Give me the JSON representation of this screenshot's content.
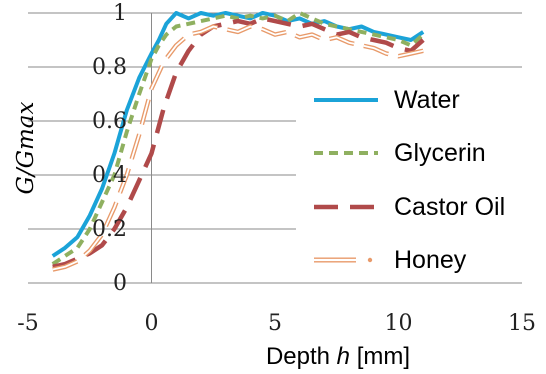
{
  "chart_data": {
    "type": "line",
    "title": "",
    "xlabel": {
      "text": "Depth ",
      "var": "h",
      "unit": " [mm]"
    },
    "ylabel": "G/Gmax",
    "xlim": [
      -5,
      15
    ],
    "ylim": [
      0,
      1
    ],
    "x_ticks": [
      -5,
      0,
      5,
      10,
      15
    ],
    "y_ticks": [
      0,
      0.2,
      0.4,
      0.6,
      0.8,
      1
    ],
    "x_tick_labels": [
      "-5",
      "0",
      "5",
      "10",
      "15"
    ],
    "y_tick_labels": [
      "0",
      "0.2",
      "0.4",
      "0.6",
      "0.8",
      "1"
    ],
    "grid": {
      "horizontal": true,
      "vertical": false
    },
    "legend_position": "right",
    "series": [
      {
        "name": "Water",
        "color": "#1ba3d8",
        "style": "solid",
        "points": [
          [
            -4,
            0.1
          ],
          [
            -3.5,
            0.13
          ],
          [
            -3,
            0.17
          ],
          [
            -2.5,
            0.25
          ],
          [
            -2,
            0.35
          ],
          [
            -1.5,
            0.48
          ],
          [
            -1,
            0.64
          ],
          [
            -0.5,
            0.76
          ],
          [
            0,
            0.85
          ],
          [
            0.3,
            0.9
          ],
          [
            0.6,
            0.96
          ],
          [
            1,
            1.0
          ],
          [
            1.5,
            0.98
          ],
          [
            2,
            1.0
          ],
          [
            2.5,
            0.99
          ],
          [
            3,
            1.0
          ],
          [
            3.5,
            0.99
          ],
          [
            4,
            0.98
          ],
          [
            4.5,
            1.0
          ],
          [
            5,
            0.99
          ],
          [
            5.5,
            0.97
          ],
          [
            6,
            0.98
          ],
          [
            6.5,
            0.96
          ],
          [
            7,
            0.97
          ],
          [
            7.5,
            0.95
          ],
          [
            8,
            0.94
          ],
          [
            8.5,
            0.95
          ],
          [
            9,
            0.93
          ],
          [
            9.5,
            0.92
          ],
          [
            10,
            0.91
          ],
          [
            10.5,
            0.9
          ],
          [
            11,
            0.93
          ]
        ]
      },
      {
        "name": "Glycerin",
        "color": "#8fb060",
        "style": "dotted",
        "points": [
          [
            -4,
            0.07
          ],
          [
            -3.5,
            0.1
          ],
          [
            -3,
            0.13
          ],
          [
            -2.5,
            0.2
          ],
          [
            -2,
            0.3
          ],
          [
            -1.5,
            0.4
          ],
          [
            -1,
            0.56
          ],
          [
            -0.5,
            0.7
          ],
          [
            0,
            0.83
          ],
          [
            0.3,
            0.88
          ],
          [
            0.6,
            0.92
          ],
          [
            1,
            0.95
          ],
          [
            1.5,
            0.96
          ],
          [
            2,
            0.97
          ],
          [
            2.5,
            0.98
          ],
          [
            3,
            0.99
          ],
          [
            3.5,
            0.98
          ],
          [
            4,
            0.99
          ],
          [
            4.5,
            0.98
          ],
          [
            5,
            0.99
          ],
          [
            5.5,
            0.97
          ],
          [
            6,
            1.0
          ],
          [
            6.5,
            0.98
          ],
          [
            7,
            0.96
          ],
          [
            7.5,
            0.95
          ],
          [
            8,
            0.94
          ],
          [
            8.5,
            0.93
          ],
          [
            9,
            0.92
          ],
          [
            9.5,
            0.91
          ],
          [
            10,
            0.9
          ],
          [
            10.5,
            0.88
          ],
          [
            11,
            0.92
          ]
        ]
      },
      {
        "name": "Castor Oil",
        "color": "#b04a4a",
        "style": "dashed",
        "points": [
          [
            -4,
            0.06
          ],
          [
            -3.5,
            0.07
          ],
          [
            -3,
            0.09
          ],
          [
            -2.5,
            0.11
          ],
          [
            -2,
            0.14
          ],
          [
            -1.5,
            0.2
          ],
          [
            -1,
            0.28
          ],
          [
            -0.5,
            0.38
          ],
          [
            0,
            0.48
          ],
          [
            0.5,
            0.65
          ],
          [
            1,
            0.78
          ],
          [
            1.5,
            0.86
          ],
          [
            2,
            0.92
          ],
          [
            2.5,
            0.95
          ],
          [
            3,
            0.96
          ],
          [
            3.5,
            0.97
          ],
          [
            4,
            0.96
          ],
          [
            4.5,
            0.98
          ],
          [
            5,
            0.97
          ],
          [
            5.5,
            0.96
          ],
          [
            6,
            0.95
          ],
          [
            6.5,
            0.96
          ],
          [
            7,
            0.94
          ],
          [
            7.5,
            0.92
          ],
          [
            8,
            0.93
          ],
          [
            8.5,
            0.91
          ],
          [
            9,
            0.9
          ],
          [
            9.5,
            0.89
          ],
          [
            10,
            0.87
          ],
          [
            10.5,
            0.86
          ],
          [
            11,
            0.9
          ]
        ]
      },
      {
        "name": "Honey",
        "color": "#e89a6a",
        "style": "dashdot-outline",
        "points": [
          [
            -4,
            0.05
          ],
          [
            -3.5,
            0.06
          ],
          [
            -3,
            0.08
          ],
          [
            -2.5,
            0.12
          ],
          [
            -2,
            0.18
          ],
          [
            -1.5,
            0.28
          ],
          [
            -1,
            0.4
          ],
          [
            -0.5,
            0.55
          ],
          [
            0,
            0.72
          ],
          [
            0.5,
            0.82
          ],
          [
            1,
            0.88
          ],
          [
            1.5,
            0.92
          ],
          [
            2,
            0.93
          ],
          [
            2.5,
            0.95
          ],
          [
            3,
            0.94
          ],
          [
            3.5,
            0.93
          ],
          [
            4,
            0.95
          ],
          [
            4.5,
            0.94
          ],
          [
            5,
            0.92
          ],
          [
            5.5,
            0.93
          ],
          [
            6,
            0.91
          ],
          [
            6.5,
            0.92
          ],
          [
            7,
            0.9
          ],
          [
            7.5,
            0.91
          ],
          [
            8,
            0.89
          ],
          [
            8.5,
            0.88
          ],
          [
            9,
            0.87
          ],
          [
            9.5,
            0.85
          ],
          [
            10,
            0.84
          ],
          [
            10.5,
            0.85
          ],
          [
            11,
            0.86
          ]
        ]
      }
    ]
  }
}
